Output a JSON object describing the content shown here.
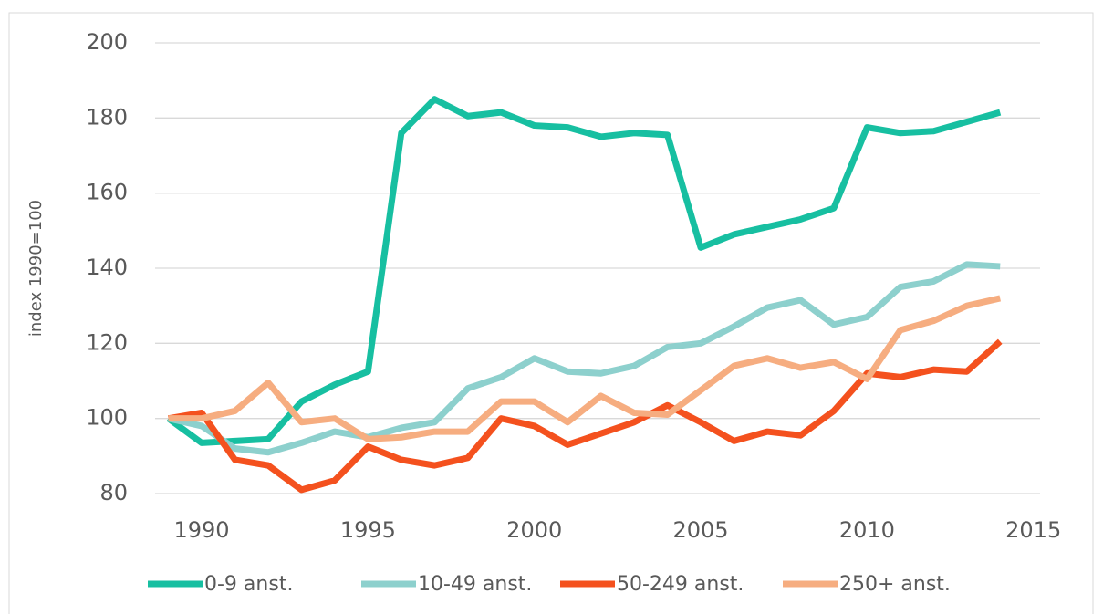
{
  "chart_data": {
    "type": "line",
    "y_label": "index 1990=100",
    "x": [
      1989,
      1990,
      1991,
      1992,
      1993,
      1994,
      1995,
      1996,
      1997,
      1998,
      1999,
      2000,
      2001,
      2002,
      2003,
      2004,
      2005,
      2006,
      2007,
      2008,
      2009,
      2010,
      2011,
      2012,
      2013,
      2014
    ],
    "series": [
      {
        "name": "0-9 anst.",
        "color": "#17bfa1",
        "values": [
          100,
          93.5,
          94,
          94.5,
          104.5,
          109,
          112.5,
          176,
          185,
          180.5,
          181.5,
          178,
          177.5,
          175,
          176,
          175.5,
          145.5,
          149,
          151,
          153,
          156,
          177.5,
          176,
          176.5,
          179,
          181.5
        ]
      },
      {
        "name": "10-49 anst.",
        "color": "#8dd0cd",
        "values": [
          100,
          98,
          92,
          91,
          93.5,
          96.5,
          95,
          97.5,
          99,
          108,
          111,
          116,
          112.5,
          112,
          114,
          119,
          120,
          124.5,
          129.5,
          131.5,
          125,
          127,
          135,
          136.5,
          141,
          140.5
        ]
      },
      {
        "name": "50-249 anst.",
        "color": "#f4511e",
        "values": [
          100,
          101.5,
          89,
          87.5,
          81,
          83.5,
          92.5,
          89,
          87.5,
          89.5,
          100,
          98,
          93,
          96,
          99,
          103.5,
          99,
          94,
          96.5,
          95.5,
          102,
          112,
          111,
          113,
          112.5,
          120.5
        ]
      },
      {
        "name": "250+ anst.",
        "color": "#f6ad80",
        "values": [
          100,
          100,
          102,
          109.5,
          99,
          100,
          94.5,
          95,
          96.5,
          96.5,
          104.5,
          104.5,
          99,
          106,
          101.5,
          101,
          107.5,
          114,
          116,
          113.5,
          115,
          110.5,
          123.5,
          126,
          130,
          132
        ]
      }
    ],
    "xlim": [
      1988.6,
      2015.2
    ],
    "xticks": [
      1990,
      1995,
      2000,
      2005,
      2010,
      2015
    ],
    "ylim": [
      80,
      200
    ],
    "yticks": [
      80,
      100,
      120,
      140,
      160,
      180,
      200
    ],
    "grid": true,
    "legend": "bottom"
  }
}
